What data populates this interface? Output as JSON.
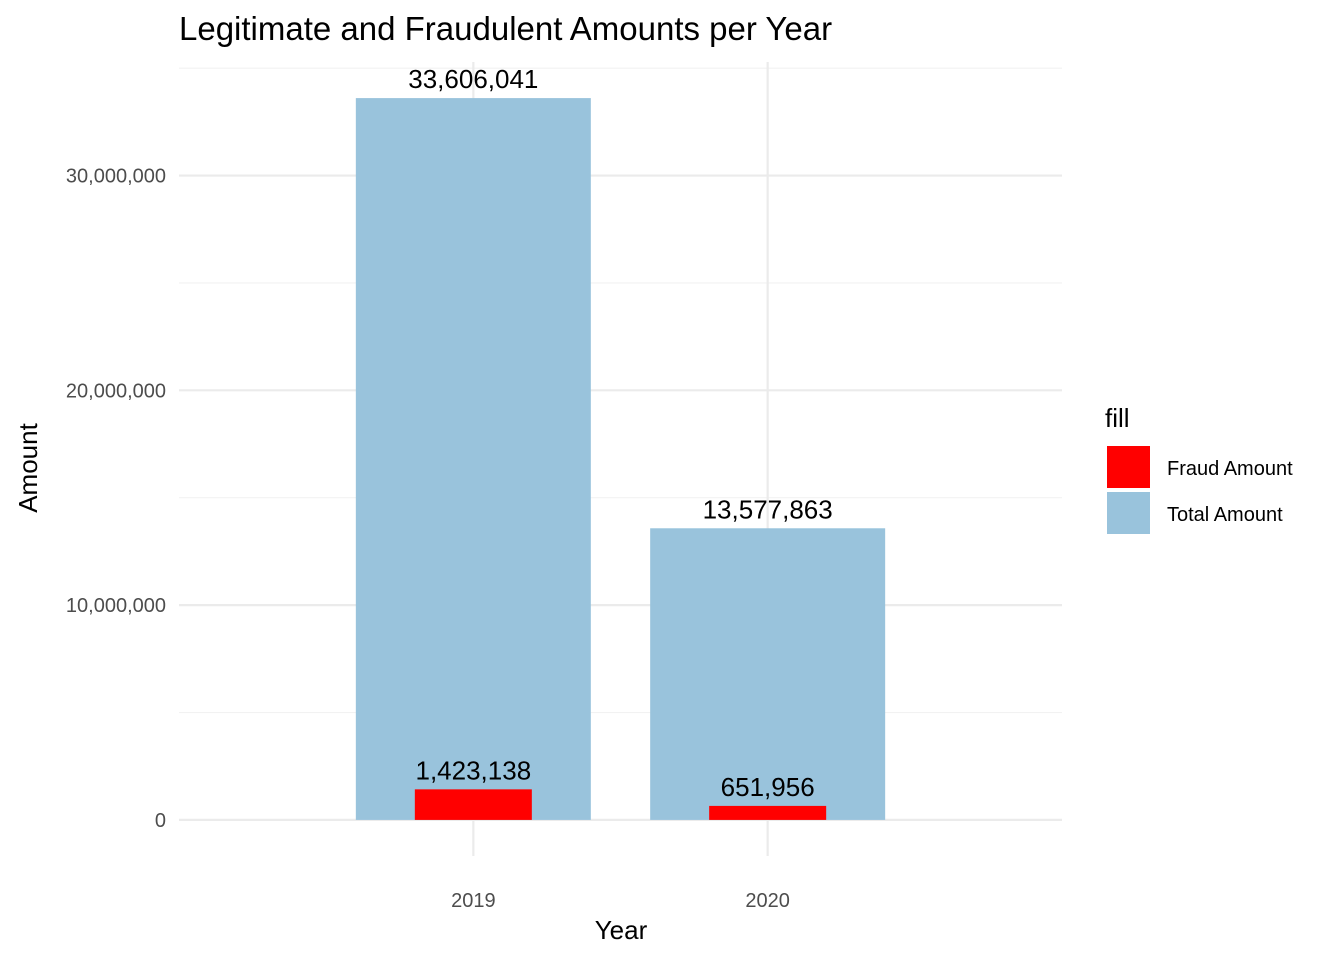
{
  "chart_data": {
    "type": "bar",
    "title": "Legitimate and Fraudulent Amounts per Year",
    "xlabel": "Year",
    "ylabel": "Amount",
    "categories": [
      "2019",
      "2020"
    ],
    "series": [
      {
        "name": "Total Amount",
        "values": [
          33606041,
          13577863
        ],
        "labels": [
          "33,606,041",
          "13,577,863"
        ],
        "color": "#99c3dc"
      },
      {
        "name": "Fraud Amount",
        "values": [
          1423138,
          651956
        ],
        "labels": [
          "1,423,138",
          "651,956"
        ],
        "color": "#ff0000"
      }
    ],
    "y_ticks": [
      0,
      10000000,
      20000000,
      30000000
    ],
    "y_tick_labels": [
      "0",
      "10,000,000",
      "20,000,000",
      "30,000,000"
    ],
    "ylim": [
      -1680302,
      35286343
    ],
    "grid": true,
    "legend": {
      "title": "fill",
      "placement": "right",
      "entries": [
        {
          "label": "Fraud Amount",
          "color": "#ff0000"
        },
        {
          "label": "Total Amount",
          "color": "#99c3dc"
        }
      ]
    }
  }
}
